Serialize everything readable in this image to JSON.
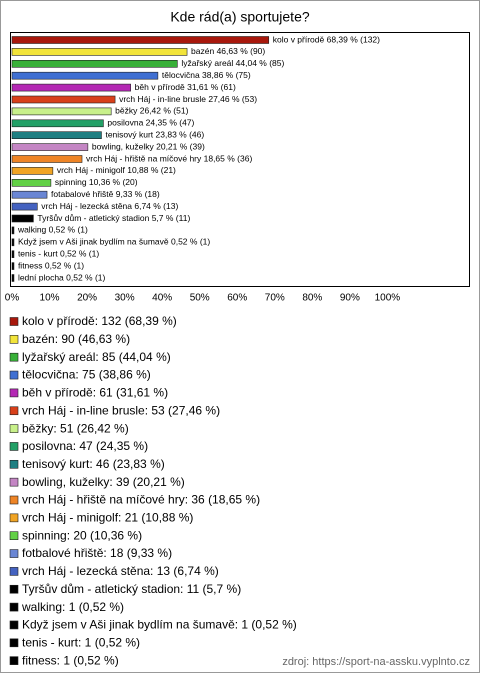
{
  "chart_data": {
    "type": "bar",
    "orientation": "horizontal",
    "title": "Kde rád(a) sportujete?",
    "categories": [
      "kolo v přírodě: 132 (68,39 %)",
      "bazén: 90 (46,63 %)",
      "lyžařský areál: 85 (44,04 %)",
      "tělocvična: 75 (38,86 %)",
      "běh v přírodě: 61 (31,61 %)",
      "vrch Háj - in-line brusle: 53 (27,46 %)",
      "běžky: 51 (26,42 %)",
      "posilovna: 47 (24,35 %)",
      "tenisový kurt: 46 (23,83 %)",
      "bowling, kuželky: 39 (20,21 %)",
      "vrch Háj - hřiště na míčové hry: 36 (18,65 %)",
      "vrch Háj - minigolf: 21 (10,88 %)",
      "spinning: 20 (10,36 %)",
      "fotbalové hřiště: 18 (9,33 %)",
      "vrch Háj - lezecká stěna: 13 (6,74 %)",
      "Tyršův dům - atletický stadion: 11 (5,7 %)",
      "walking: 1 (0,52 %)",
      "Když jsem v Aši jinak bydlím na šumavě: 1 (0,52 %)",
      "tenis - kurt: 1 (0,52 %)",
      "fitness: 1 (0,52 %)",
      "lední plocha: 1 (0,52 %)"
    ],
    "values": [
      68.39,
      46.63,
      44.04,
      38.86,
      31.61,
      27.46,
      26.42,
      24.35,
      23.83,
      20.21,
      18.65,
      10.88,
      10.36,
      9.33,
      6.74,
      5.7,
      0.52,
      0.52,
      0.52,
      0.52,
      0.52
    ],
    "value_labels": [
      "kolo v přírodě 68,39 % (132)",
      "bazén 46,63 % (90)",
      "lyžařský areál 44,04 % (85)",
      "tělocvična 38,86 % (75)",
      "běh v přírodě 31,61 % (61)",
      "vrch Háj - in-line brusle 27,46 % (53)",
      "běžky 26,42 % (51)",
      "posilovna 24,35 % (47)",
      "tenisový kurt 23,83 % (46)",
      "bowling, kuželky 20,21 % (39)",
      "vrch Háj - hřiště na míčové hry 18,65 % (36)",
      "vrch Háj - minigolf 10,88 % (21)",
      "spinning 10,36 % (20)",
      "fotabalové hřiště 9,33 % (18)",
      "vrch Háj - lezecká stěna 6,74 % (13)",
      "Tyršův dům - atletický stadion 5,7 % (11)",
      "walking 0,52 % (1)",
      "Když jsem v Aši jinak bydlím na šumavě 0,52 % (1)",
      "tenis - kurt 0,52 % (1)",
      "fitness 0,52 % (1)",
      "lední plocha 0,52 % (1)"
    ],
    "colors": [
      "#a8180c",
      "#f2e43a",
      "#38b038",
      "#3f6fd2",
      "#b428b4",
      "#d8401a",
      "#c8f08a",
      "#22a066",
      "#1f7f82",
      "#c486c4",
      "#ee8426",
      "#f0a424",
      "#62d046",
      "#6a86d4",
      "#4462c0",
      "#000000",
      "#000000",
      "#000000",
      "#000000",
      "#000000",
      "#000000"
    ],
    "xlim": [
      0,
      122
    ],
    "xticks": [
      {
        "value": 0,
        "label": "0%"
      },
      {
        "value": 10,
        "label": "10%"
      },
      {
        "value": 20,
        "label": "20%"
      },
      {
        "value": 30,
        "label": "30%"
      },
      {
        "value": 40,
        "label": "40%"
      },
      {
        "value": 50,
        "label": "50%"
      },
      {
        "value": 60,
        "label": "60%"
      },
      {
        "value": 70,
        "label": "70%"
      },
      {
        "value": 80,
        "label": "80%"
      },
      {
        "value": 90,
        "label": "90%"
      },
      {
        "value": 100,
        "label": "100%"
      }
    ],
    "grid": false,
    "source": "zdroj: https://sport-na-assku.vyplnto.cz"
  }
}
